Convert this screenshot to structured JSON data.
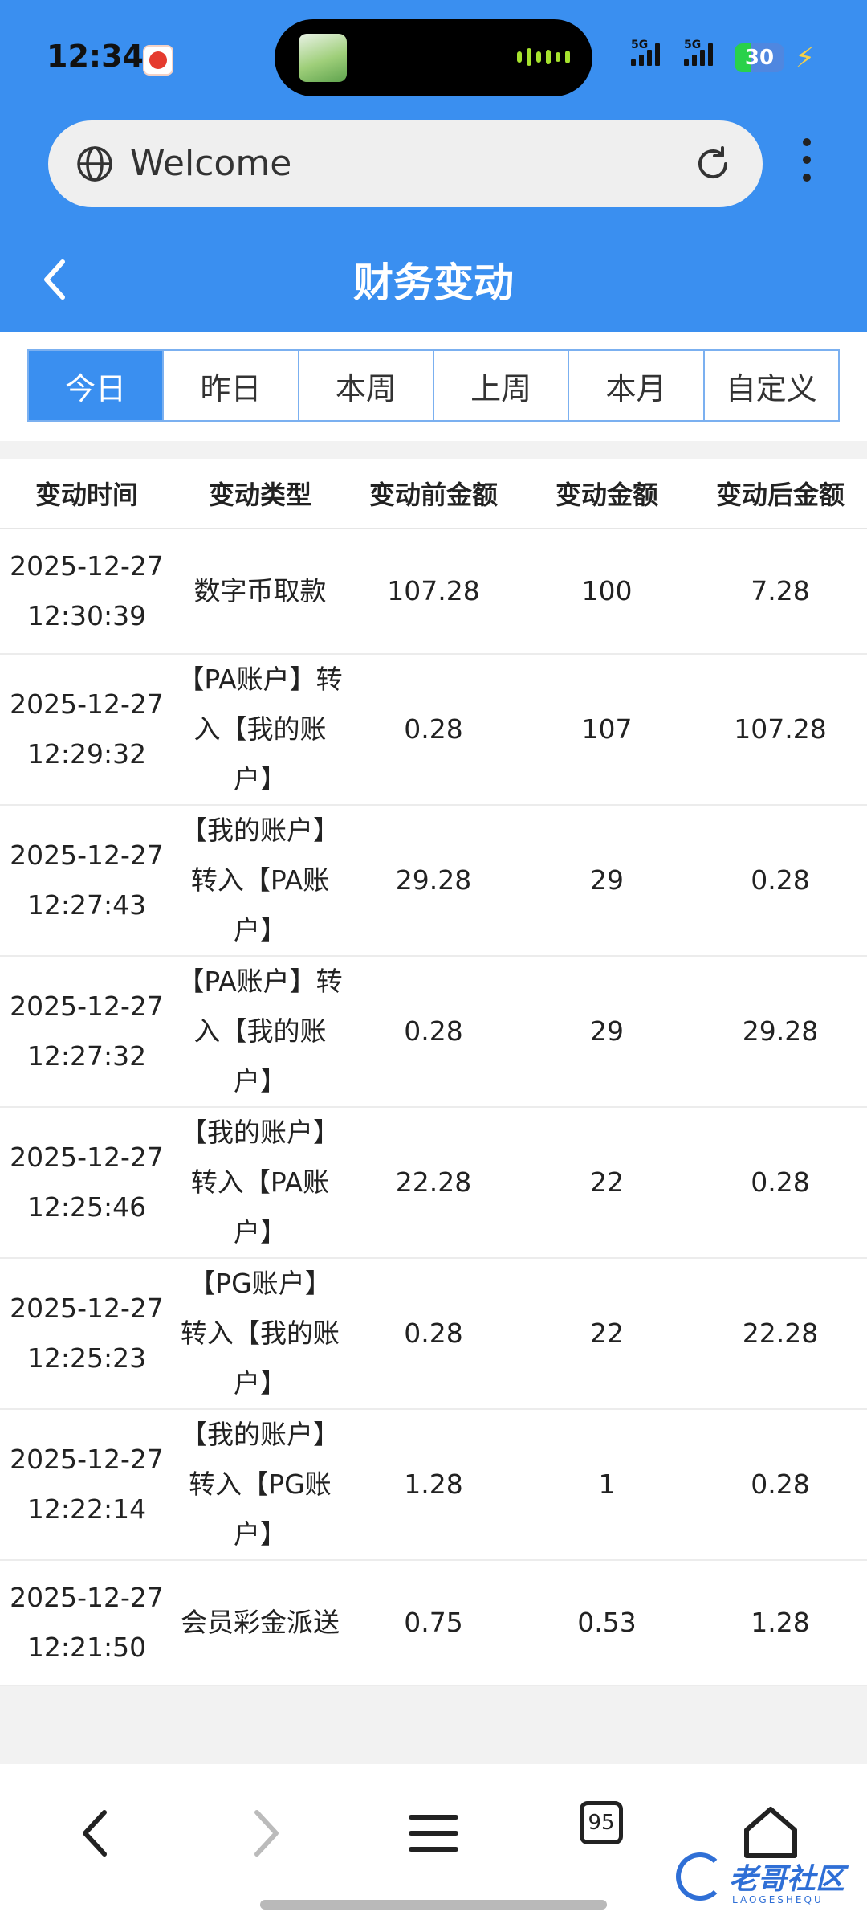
{
  "status_bar": {
    "time": "12:34",
    "signal1_label": "5G",
    "signal2_label": "5G",
    "battery": "30"
  },
  "url_bar": {
    "text": "Welcome"
  },
  "header": {
    "title": "财务变动"
  },
  "tabs": [
    {
      "label": "今日",
      "active": true
    },
    {
      "label": "昨日",
      "active": false
    },
    {
      "label": "本周",
      "active": false
    },
    {
      "label": "上周",
      "active": false
    },
    {
      "label": "本月",
      "active": false
    },
    {
      "label": "自定义",
      "active": false
    }
  ],
  "table": {
    "columns": [
      "变动时间",
      "变动类型",
      "变动前金额",
      "变动金额",
      "变动后金额"
    ],
    "rows": [
      {
        "date": "2025-12-27",
        "time": "12:30:39",
        "type": "数字币取款",
        "before": "107.28",
        "amount": "100",
        "after": "7.28"
      },
      {
        "date": "2025-12-27",
        "time": "12:29:32",
        "type": "【PA账户】转入【我的账户】",
        "before": "0.28",
        "amount": "107",
        "after": "107.28"
      },
      {
        "date": "2025-12-27",
        "time": "12:27:43",
        "type": "【我的账户】转入【PA账户】",
        "before": "29.28",
        "amount": "29",
        "after": "0.28"
      },
      {
        "date": "2025-12-27",
        "time": "12:27:32",
        "type": "【PA账户】转入【我的账户】",
        "before": "0.28",
        "amount": "29",
        "after": "29.28"
      },
      {
        "date": "2025-12-27",
        "time": "12:25:46",
        "type": "【我的账户】转入【PA账户】",
        "before": "22.28",
        "amount": "22",
        "after": "0.28"
      },
      {
        "date": "2025-12-27",
        "time": "12:25:23",
        "type": "【PG账户】转入【我的账户】",
        "before": "0.28",
        "amount": "22",
        "after": "22.28"
      },
      {
        "date": "2025-12-27",
        "time": "12:22:14",
        "type": "【我的账户】转入【PG账户】",
        "before": "1.28",
        "amount": "1",
        "after": "0.28"
      },
      {
        "date": "2025-12-27",
        "time": "12:21:50",
        "type": "会员彩金派送",
        "before": "0.75",
        "amount": "0.53",
        "after": "1.28"
      }
    ]
  },
  "bottom_nav": {
    "tab_count": "95"
  },
  "watermark": {
    "text": "老哥社区",
    "sub": "LAOGESHEQU"
  },
  "colors": {
    "brand_blue": "#3a8ff0",
    "tab_border": "#7bb0f0"
  }
}
